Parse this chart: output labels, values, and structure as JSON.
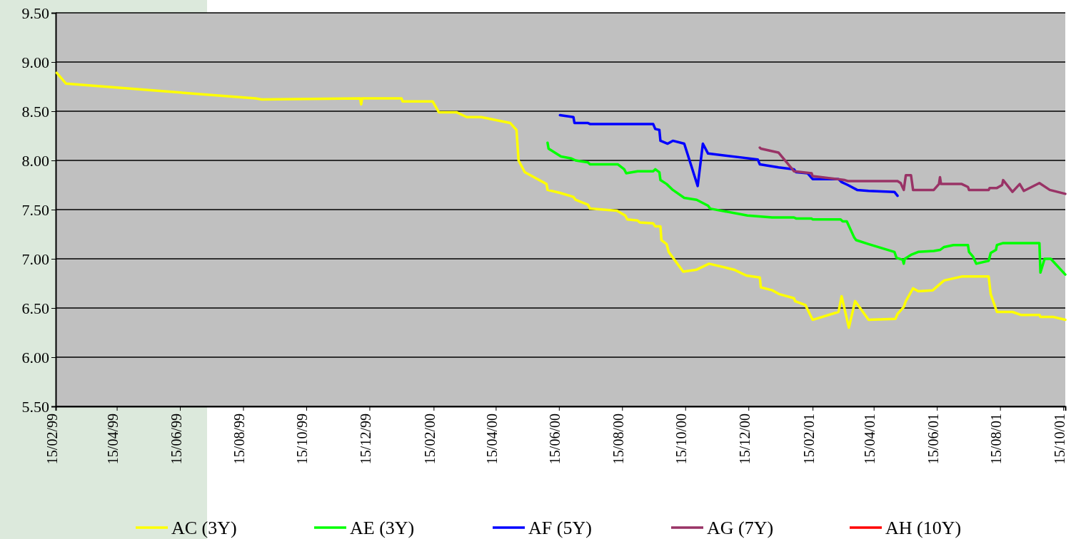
{
  "chart_data": {
    "type": "line",
    "xlim": [
      "1999-02-15",
      "2001-10-17"
    ],
    "ylim": [
      5.5,
      9.5
    ],
    "xticks": [
      {
        "value": "1999-02-15",
        "label": "15/02/99"
      },
      {
        "value": "1999-04-15",
        "label": "15/04/99"
      },
      {
        "value": "1999-06-15",
        "label": "15/06/99"
      },
      {
        "value": "1999-08-15",
        "label": "15/08/99"
      },
      {
        "value": "1999-10-15",
        "label": "15/10/99"
      },
      {
        "value": "1999-12-15",
        "label": "15/12/99"
      },
      {
        "value": "2000-02-15",
        "label": "15/02/00"
      },
      {
        "value": "2000-04-15",
        "label": "15/04/00"
      },
      {
        "value": "2000-06-15",
        "label": "15/06/00"
      },
      {
        "value": "2000-08-15",
        "label": "15/08/00"
      },
      {
        "value": "2000-10-15",
        "label": "15/10/00"
      },
      {
        "value": "2000-12-15",
        "label": "15/12/00"
      },
      {
        "value": "2001-02-15",
        "label": "15/02/01"
      },
      {
        "value": "2001-04-15",
        "label": "15/04/01"
      },
      {
        "value": "2001-06-15",
        "label": "15/06/01"
      },
      {
        "value": "2001-08-15",
        "label": "15/08/01"
      },
      {
        "value": "2001-10-15",
        "label": "15/10/01"
      }
    ],
    "yticks": [
      {
        "value": 5.5,
        "label": "5.50"
      },
      {
        "value": 6,
        "label": "6.00"
      },
      {
        "value": 6.5,
        "label": "6.50"
      },
      {
        "value": 7,
        "label": "7.00"
      },
      {
        "value": 7.5,
        "label": "7.50"
      },
      {
        "value": 8,
        "label": "8.00"
      },
      {
        "value": 8.5,
        "label": "8.50"
      },
      {
        "value": 9,
        "label": "9.00"
      },
      {
        "value": 9.5,
        "label": "9.50"
      }
    ],
    "grid": "y",
    "legend": "bottom",
    "marker": "none",
    "line_style": "solid",
    "series": [
      {
        "name": "AC (3Y)",
        "color": "#ffff00",
        "x": [
          "1999-02-16",
          "1999-02-25",
          "1999-08-27",
          "1999-09-02",
          "1999-12-06",
          "1999-12-07",
          "1999-12-08",
          "2000-01-15",
          "2000-01-16",
          "2000-02-14",
          "2000-02-20",
          "2000-03-08",
          "2000-03-18",
          "2000-04-01",
          "2000-04-29",
          "2000-05-05",
          "2000-05-07",
          "2000-05-13",
          "2000-06-03",
          "2000-06-04",
          "2000-06-16",
          "2000-06-29",
          "2000-07-01",
          "2000-07-13",
          "2000-07-15",
          "2000-08-10",
          "2000-08-18",
          "2000-08-20",
          "2000-08-30",
          "2000-09-01",
          "2000-09-14",
          "2000-09-16",
          "2000-09-21",
          "2000-09-22",
          "2000-09-27",
          "2000-09-29",
          "2000-10-13",
          "2000-10-26",
          "2000-11-07",
          "2000-12-01",
          "2000-12-13",
          "2000-12-26",
          "2000-12-27",
          "2001-01-07",
          "2001-01-14",
          "2001-01-28",
          "2001-01-29",
          "2001-02-08",
          "2001-02-15",
          "2001-03-12",
          "2001-03-15",
          "2001-03-22",
          "2001-03-28",
          "2001-04-10",
          "2001-05-06",
          "2001-05-08",
          "2001-05-14",
          "2001-05-16",
          "2001-05-23",
          "2001-05-28",
          "2001-06-11",
          "2001-06-22",
          "2001-07-09",
          "2001-08-04",
          "2001-08-06",
          "2001-08-12",
          "2001-08-27",
          "2001-09-04",
          "2001-09-22",
          "2001-09-23",
          "2001-10-05",
          "2001-10-17"
        ],
        "values": [
          8.89,
          8.78,
          8.63,
          8.62,
          8.63,
          8.57,
          8.63,
          8.63,
          8.6,
          8.6,
          8.49,
          8.49,
          8.44,
          8.44,
          8.38,
          8.31,
          8.0,
          7.88,
          7.76,
          7.7,
          7.67,
          7.63,
          7.6,
          7.55,
          7.51,
          7.49,
          7.44,
          7.4,
          7.39,
          7.37,
          7.36,
          7.33,
          7.33,
          7.19,
          7.15,
          7.07,
          6.87,
          6.89,
          6.95,
          6.89,
          6.83,
          6.81,
          6.71,
          6.68,
          6.64,
          6.6,
          6.57,
          6.53,
          6.38,
          6.46,
          6.62,
          6.3,
          6.57,
          6.38,
          6.39,
          6.44,
          6.51,
          6.57,
          6.7,
          6.67,
          6.68,
          6.78,
          6.82,
          6.82,
          6.64,
          6.46,
          6.46,
          6.43,
          6.43,
          6.41,
          6.41,
          6.38
        ]
      },
      {
        "name": "AE (3Y)",
        "color": "#00ff00",
        "x": [
          "2000-06-04",
          "2000-06-05",
          "2000-06-17",
          "2000-06-27",
          "2000-07-01",
          "2000-07-13",
          "2000-07-15",
          "2000-08-11",
          "2000-08-17",
          "2000-08-19",
          "2000-08-30",
          "2000-09-14",
          "2000-09-16",
          "2000-09-20",
          "2000-09-21",
          "2000-09-27",
          "2000-10-03",
          "2000-10-14",
          "2000-10-26",
          "2000-11-06",
          "2000-11-08",
          "2000-12-14",
          "2001-01-07",
          "2001-01-28",
          "2001-01-30",
          "2001-02-14",
          "2001-02-15",
          "2001-03-14",
          "2001-03-16",
          "2001-03-20",
          "2001-03-27",
          "2001-03-29",
          "2001-04-10",
          "2001-05-05",
          "2001-05-07",
          "2001-05-13",
          "2001-05-14",
          "2001-05-15",
          "2001-05-21",
          "2001-05-28",
          "2001-06-12",
          "2001-06-18",
          "2001-06-22",
          "2001-07-01",
          "2001-07-15",
          "2001-07-16",
          "2001-07-20",
          "2001-07-23",
          "2001-08-04",
          "2001-08-06",
          "2001-08-11",
          "2001-08-12",
          "2001-08-18",
          "2001-09-22",
          "2001-09-23",
          "2001-09-27",
          "2001-10-03",
          "2001-10-17"
        ],
        "values": [
          8.18,
          8.12,
          8.04,
          8.02,
          8.0,
          7.98,
          7.96,
          7.96,
          7.91,
          7.87,
          7.89,
          7.89,
          7.91,
          7.88,
          7.8,
          7.76,
          7.7,
          7.62,
          7.6,
          7.54,
          7.51,
          7.44,
          7.42,
          7.42,
          7.41,
          7.41,
          7.4,
          7.4,
          7.38,
          7.38,
          7.22,
          7.19,
          7.15,
          7.07,
          7.01,
          6.99,
          6.95,
          7.0,
          7.04,
          7.07,
          7.08,
          7.09,
          7.12,
          7.14,
          7.14,
          7.07,
          7.02,
          6.95,
          6.98,
          7.06,
          7.09,
          7.14,
          7.16,
          7.16,
          6.86,
          7.0,
          7.0,
          6.84
        ]
      },
      {
        "name": "AF (5Y)",
        "color": "#0000ff",
        "x": [
          "2000-06-16",
          "2000-06-29",
          "2000-06-30",
          "2000-07-13",
          "2000-07-15",
          "2000-09-14",
          "2000-09-16",
          "2000-09-20",
          "2000-09-21",
          "2000-09-28",
          "2000-10-03",
          "2000-10-14",
          "2000-10-27",
          "2000-11-01",
          "2000-11-06",
          "2000-12-24",
          "2000-12-26",
          "2001-01-13",
          "2001-01-28",
          "2001-01-30",
          "2001-02-10",
          "2001-02-15",
          "2001-03-12",
          "2001-03-15",
          "2001-03-21",
          "2001-03-30",
          "2001-04-10",
          "2001-05-05",
          "2001-05-08"
        ],
        "values": [
          8.46,
          8.44,
          8.38,
          8.38,
          8.37,
          8.37,
          8.32,
          8.31,
          8.2,
          8.17,
          8.2,
          8.17,
          7.74,
          8.17,
          8.07,
          8.01,
          7.96,
          7.93,
          7.91,
          7.88,
          7.87,
          7.81,
          7.81,
          7.78,
          7.75,
          7.7,
          7.69,
          7.68,
          7.64
        ]
      },
      {
        "name": "AG (7Y)",
        "color": "#993366",
        "x": [
          "2000-12-26",
          "2000-12-27",
          "2001-01-13",
          "2001-01-28",
          "2001-02-14",
          "2001-02-15",
          "2001-03-18",
          "2001-03-21",
          "2001-05-08",
          "2001-05-11",
          "2001-05-14",
          "2001-05-16",
          "2001-05-21",
          "2001-05-23",
          "2001-06-12",
          "2001-06-17",
          "2001-06-18",
          "2001-06-19",
          "2001-07-09",
          "2001-07-15",
          "2001-07-16",
          "2001-08-04",
          "2001-08-05",
          "2001-08-12",
          "2001-08-17",
          "2001-08-18",
          "2001-08-27",
          "2001-09-03",
          "2001-09-07",
          "2001-09-22",
          "2001-10-02",
          "2001-10-17"
        ],
        "values": [
          8.13,
          8.12,
          8.08,
          7.89,
          7.87,
          7.84,
          7.8,
          7.79,
          7.79,
          7.77,
          7.7,
          7.85,
          7.85,
          7.7,
          7.7,
          7.76,
          7.83,
          7.76,
          7.76,
          7.73,
          7.7,
          7.7,
          7.72,
          7.72,
          7.75,
          7.8,
          7.68,
          7.76,
          7.69,
          7.77,
          7.7,
          7.66
        ]
      },
      {
        "name": "AH (10Y)",
        "color": "#ff0000"
      }
    ]
  }
}
